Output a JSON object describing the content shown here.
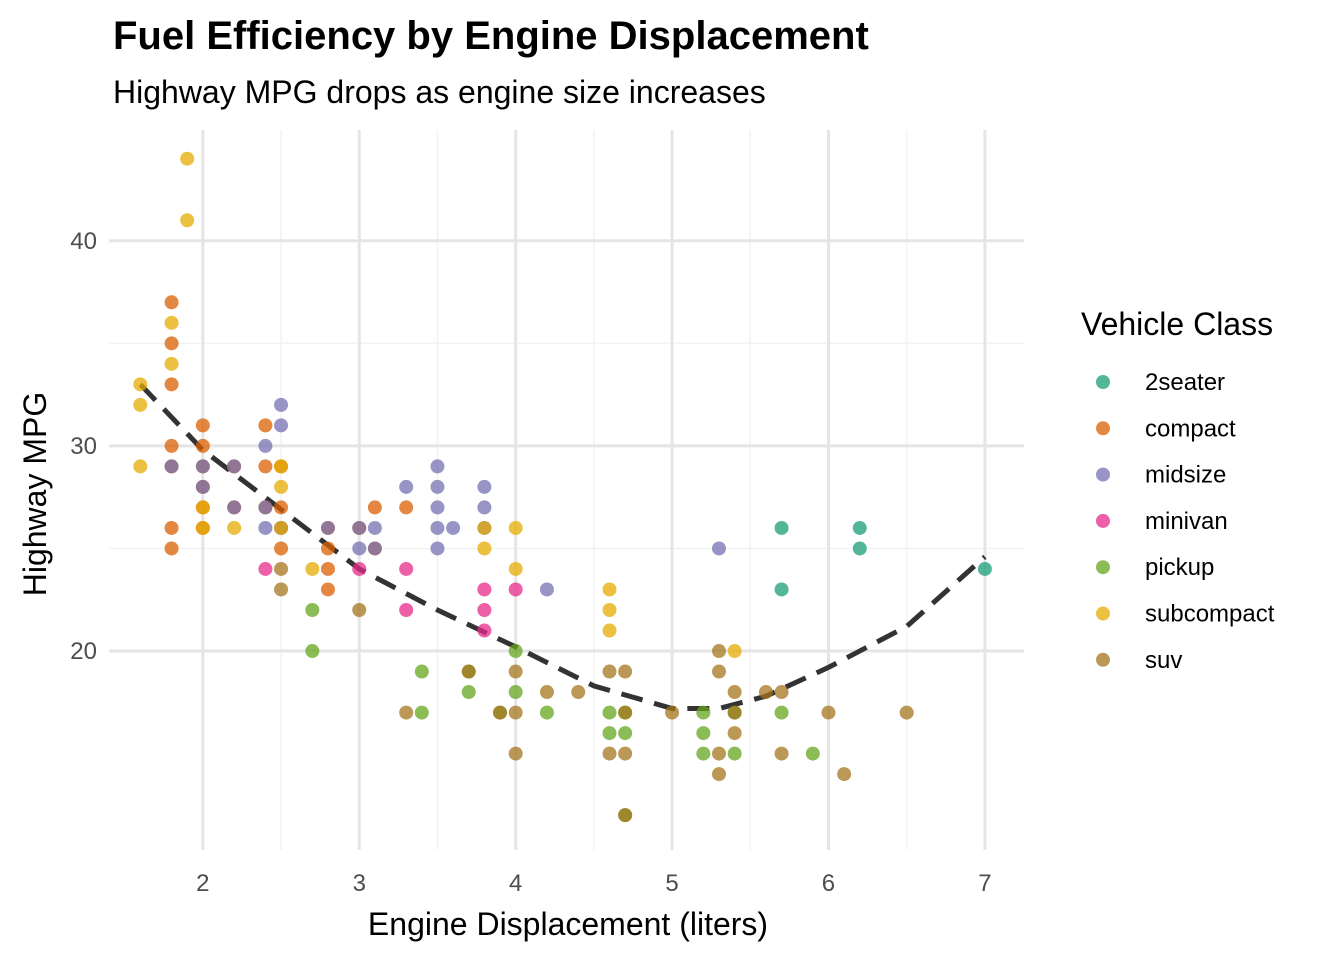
{
  "chart_data": {
    "type": "scatter",
    "title": "Fuel Efficiency by Engine Displacement",
    "subtitle": "Highway MPG drops as engine size increases",
    "xlabel": "Engine Displacement (liters)",
    "ylabel": "Highway MPG",
    "xlim": [
      1.4,
      7.25
    ],
    "ylim": [
      10.3,
      45.4
    ],
    "xticks": [
      2,
      3,
      4,
      5,
      6,
      7
    ],
    "yticks": [
      20,
      30,
      40
    ],
    "grid": true,
    "legend": {
      "title": "Vehicle Class",
      "placement": "right"
    },
    "trend": {
      "style": "dashed",
      "color": "#333333",
      "x": [
        1.6,
        2.0,
        2.5,
        3.0,
        3.5,
        4.0,
        4.5,
        5.0,
        5.3,
        5.6,
        6.0,
        6.5,
        7.0
      ],
      "y": [
        33.0,
        29.8,
        26.9,
        24.0,
        22.0,
        20.2,
        18.3,
        17.2,
        17.2,
        17.8,
        19.2,
        21.2,
        24.6
      ]
    },
    "series": [
      {
        "name": "2seater",
        "color": "#1B9E77",
        "points": [
          [
            5.7,
            26
          ],
          [
            5.7,
            23
          ],
          [
            6.2,
            26
          ],
          [
            6.2,
            25
          ],
          [
            7.0,
            24
          ]
        ]
      },
      {
        "name": "compact",
        "color": "#D95F02",
        "points": [
          [
            1.8,
            37
          ],
          [
            1.8,
            35
          ],
          [
            1.8,
            33
          ],
          [
            1.8,
            30
          ],
          [
            1.8,
            29
          ],
          [
            1.8,
            26
          ],
          [
            1.8,
            25
          ],
          [
            2.0,
            31
          ],
          [
            2.0,
            30
          ],
          [
            2.0,
            29
          ],
          [
            2.0,
            28
          ],
          [
            2.0,
            27
          ],
          [
            2.0,
            26
          ],
          [
            2.2,
            29
          ],
          [
            2.2,
            27
          ],
          [
            2.4,
            31
          ],
          [
            2.4,
            29
          ],
          [
            2.4,
            27
          ],
          [
            2.5,
            29
          ],
          [
            2.5,
            27
          ],
          [
            2.5,
            26
          ],
          [
            2.5,
            25
          ],
          [
            2.8,
            26
          ],
          [
            2.8,
            25
          ],
          [
            2.8,
            24
          ],
          [
            2.8,
            23
          ],
          [
            3.0,
            26
          ],
          [
            3.1,
            27
          ],
          [
            3.1,
            25
          ],
          [
            3.3,
            27
          ]
        ]
      },
      {
        "name": "midsize",
        "color": "#7570B3",
        "points": [
          [
            1.8,
            29
          ],
          [
            2.0,
            29
          ],
          [
            2.0,
            28
          ],
          [
            2.2,
            29
          ],
          [
            2.2,
            27
          ],
          [
            2.4,
            30
          ],
          [
            2.4,
            27
          ],
          [
            2.4,
            26
          ],
          [
            2.5,
            32
          ],
          [
            2.5,
            31
          ],
          [
            2.5,
            26
          ],
          [
            2.8,
            26
          ],
          [
            3.0,
            26
          ],
          [
            3.0,
            25
          ],
          [
            3.1,
            26
          ],
          [
            3.1,
            25
          ],
          [
            3.3,
            28
          ],
          [
            3.5,
            29
          ],
          [
            3.5,
            28
          ],
          [
            3.5,
            27
          ],
          [
            3.5,
            26
          ],
          [
            3.5,
            25
          ],
          [
            3.6,
            26
          ],
          [
            3.8,
            28
          ],
          [
            3.8,
            27
          ],
          [
            3.8,
            26
          ],
          [
            4.2,
            23
          ],
          [
            5.3,
            25
          ]
        ]
      },
      {
        "name": "minivan",
        "color": "#E7298A",
        "points": [
          [
            2.4,
            24
          ],
          [
            3.0,
            24
          ],
          [
            3.3,
            24
          ],
          [
            3.3,
            22
          ],
          [
            3.8,
            23
          ],
          [
            3.8,
            22
          ],
          [
            3.8,
            21
          ],
          [
            4.0,
            23
          ]
        ]
      },
      {
        "name": "pickup",
        "color": "#66A61E",
        "points": [
          [
            2.7,
            22
          ],
          [
            2.7,
            20
          ],
          [
            3.4,
            19
          ],
          [
            3.4,
            17
          ],
          [
            3.7,
            18
          ],
          [
            3.7,
            19
          ],
          [
            3.9,
            17
          ],
          [
            4.0,
            20
          ],
          [
            4.0,
            18
          ],
          [
            4.2,
            17
          ],
          [
            4.6,
            17
          ],
          [
            4.6,
            16
          ],
          [
            4.7,
            17
          ],
          [
            4.7,
            16
          ],
          [
            4.7,
            12
          ],
          [
            5.2,
            17
          ],
          [
            5.2,
            16
          ],
          [
            5.2,
            15
          ],
          [
            5.4,
            17
          ],
          [
            5.4,
            15
          ],
          [
            5.7,
            17
          ],
          [
            5.9,
            15
          ]
        ]
      },
      {
        "name": "subcompact",
        "color": "#E6AB02",
        "points": [
          [
            1.6,
            33
          ],
          [
            1.6,
            32
          ],
          [
            1.6,
            29
          ],
          [
            1.8,
            36
          ],
          [
            1.8,
            34
          ],
          [
            1.9,
            44
          ],
          [
            1.9,
            41
          ],
          [
            2.0,
            27
          ],
          [
            2.0,
            26
          ],
          [
            2.2,
            26
          ],
          [
            2.5,
            29
          ],
          [
            2.5,
            28
          ],
          [
            2.5,
            26
          ],
          [
            2.7,
            24
          ],
          [
            3.8,
            26
          ],
          [
            3.8,
            25
          ],
          [
            4.0,
            26
          ],
          [
            4.0,
            24
          ],
          [
            4.6,
            23
          ],
          [
            4.6,
            22
          ],
          [
            4.6,
            21
          ],
          [
            5.4,
            20
          ]
        ]
      },
      {
        "name": "suv",
        "color": "#A6761D",
        "points": [
          [
            2.5,
            24
          ],
          [
            2.5,
            23
          ],
          [
            3.0,
            22
          ],
          [
            3.3,
            17
          ],
          [
            3.7,
            19
          ],
          [
            3.9,
            17
          ],
          [
            4.0,
            19
          ],
          [
            4.0,
            17
          ],
          [
            4.0,
            15
          ],
          [
            4.2,
            18
          ],
          [
            4.4,
            18
          ],
          [
            4.6,
            19
          ],
          [
            4.6,
            15
          ],
          [
            4.7,
            19
          ],
          [
            4.7,
            17
          ],
          [
            4.7,
            15
          ],
          [
            4.7,
            12
          ],
          [
            5.0,
            17
          ],
          [
            5.3,
            20
          ],
          [
            5.3,
            19
          ],
          [
            5.3,
            15
          ],
          [
            5.3,
            14
          ],
          [
            5.4,
            18
          ],
          [
            5.4,
            17
          ],
          [
            5.4,
            16
          ],
          [
            5.6,
            18
          ],
          [
            5.7,
            18
          ],
          [
            5.7,
            15
          ],
          [
            6.0,
            17
          ],
          [
            6.1,
            14
          ],
          [
            6.5,
            17
          ]
        ]
      }
    ]
  }
}
